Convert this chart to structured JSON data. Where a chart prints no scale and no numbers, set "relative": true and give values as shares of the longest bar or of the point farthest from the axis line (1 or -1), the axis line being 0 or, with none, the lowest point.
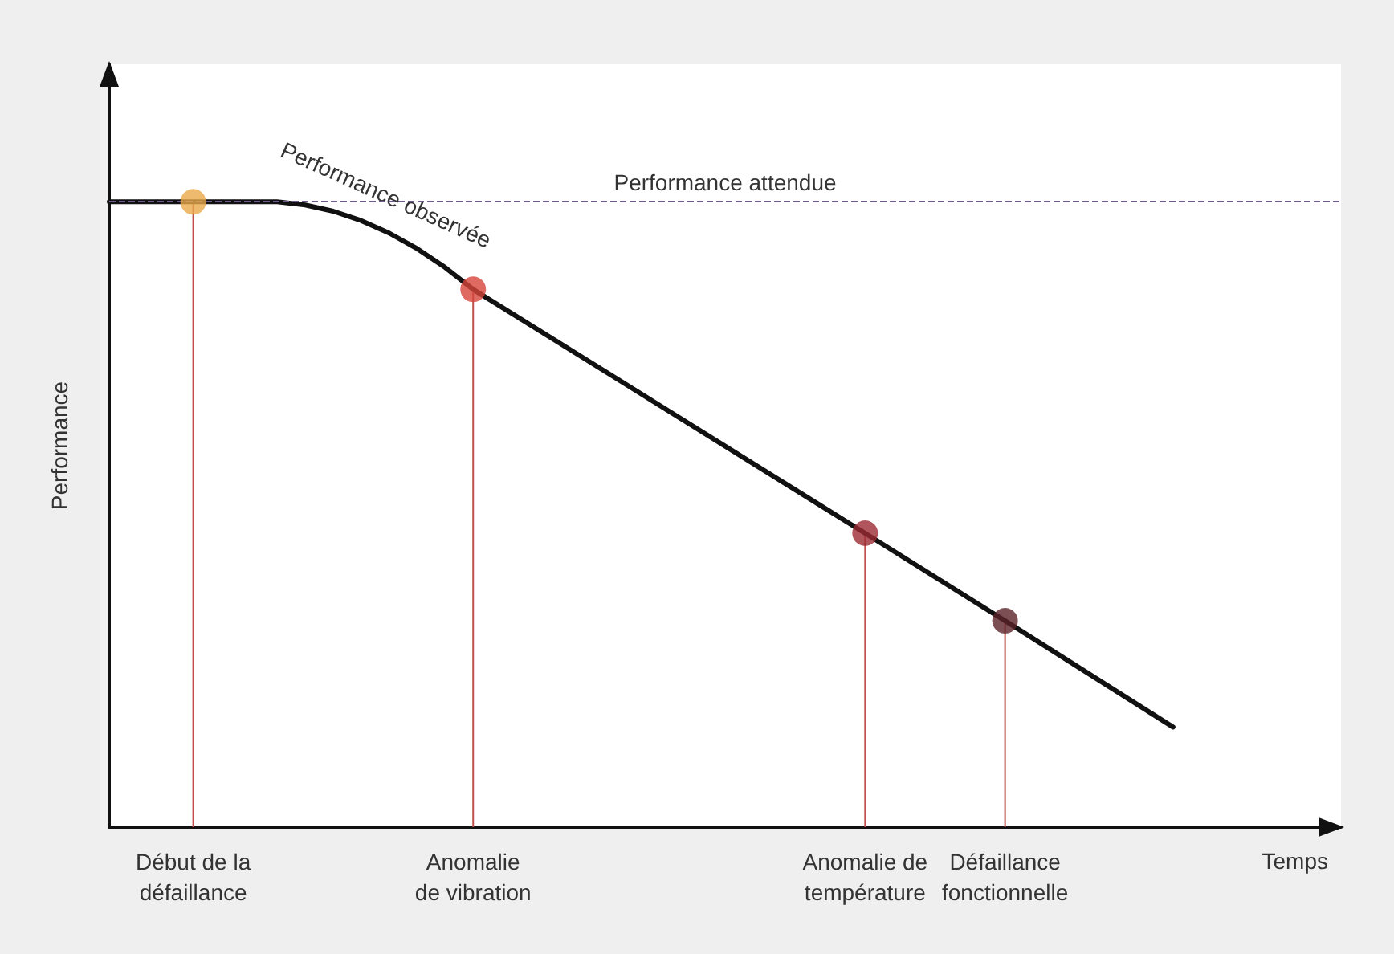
{
  "chart_data": {
    "type": "line",
    "relative": true,
    "xlabel": "Temps",
    "ylabel": "Performance",
    "categories": [
      null,
      null,
      null,
      "Début de la\ndéfaillance",
      null,
      null,
      null,
      null,
      null,
      null,
      null,
      null,
      null,
      "Anomalie\nde vibration",
      null,
      null,
      null,
      null,
      null,
      null,
      null,
      null,
      null,
      null,
      null,
      null,
      null,
      "Anomalie de\ntempérature",
      null,
      null,
      null,
      null,
      "Défaillance\nfonctionnelle",
      null,
      null,
      null,
      null,
      null,
      null,
      null,
      null,
      null,
      null,
      null,
      null
    ],
    "series": [
      {
        "color": "#111111",
        "values": [
          1,
          null,
          null,
          1,
          null,
          null,
          1,
          0.995,
          0.985,
          0.97,
          0.95,
          0.925,
          0.895,
          0.86,
          null,
          null,
          null,
          null,
          null,
          null,
          null,
          null,
          null,
          null,
          null,
          null,
          null,
          0.47,
          null,
          null,
          null,
          null,
          0.33,
          null,
          null,
          null,
          null,
          null,
          0.16,
          null,
          null,
          null,
          null,
          null,
          null
        ]
      },
      {
        "type": "lollipop",
        "color": "#c0504d",
        "x": [
          "Début de la\ndéfaillance",
          "Anomalie\nde vibration",
          "Anomalie de\ntempérature",
          "Défaillance\nfonctionnelle"
        ],
        "values": [
          1,
          0.86,
          0.47,
          0.33
        ],
        "colors": [
          "#e8a94a",
          "#d6453a",
          "#9c2a33",
          "#5a2328"
        ]
      }
    ],
    "ref_lines": [
      {
        "axis": "y",
        "value": 1,
        "label": "Performance attendue",
        "color": "#6b5b8a",
        "line_style": "dashed"
      }
    ],
    "annotations": [
      "Performance observée"
    ],
    "grid": false,
    "tick_labels": "x"
  }
}
